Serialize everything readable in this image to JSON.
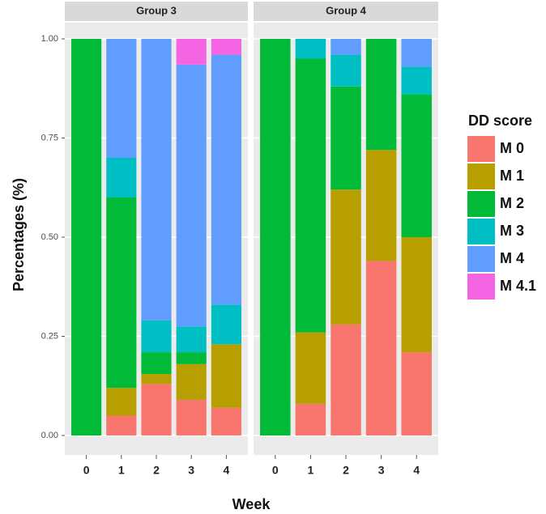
{
  "chart_data": {
    "type": "bar",
    "stacked": true,
    "x_label": "Week",
    "y_label": "Percentages (%)",
    "legend_title": "DD score",
    "categories": [
      "0",
      "1",
      "2",
      "3",
      "4"
    ],
    "ylim": [
      0,
      1
    ],
    "yticks": [
      {
        "value": 0,
        "label": "0.00"
      },
      {
        "value": 0.25,
        "label": "0.25"
      },
      {
        "value": 0.5,
        "label": "0.50"
      },
      {
        "value": 0.75,
        "label": "0.75"
      },
      {
        "value": 1,
        "label": "1.00"
      }
    ],
    "grid": true,
    "series": [
      {
        "name": "M 0",
        "color": "#F8766D"
      },
      {
        "name": "M 1",
        "color": "#B79F00"
      },
      {
        "name": "M 2",
        "color": "#00BA38"
      },
      {
        "name": "M 3",
        "color": "#00BFC4"
      },
      {
        "name": "M 4",
        "color": "#619CFF"
      },
      {
        "name": "M 4.1",
        "color": "#F564E3"
      }
    ],
    "facets": [
      {
        "title": "Group 3",
        "series": [
          {
            "values": [
              0,
              0.05,
              0.13,
              0.09,
              0.07
            ]
          },
          {
            "values": [
              0,
              0.07,
              0.025,
              0.09,
              0.16
            ]
          },
          {
            "values": [
              1,
              0.48,
              0.055,
              0.03,
              0
            ]
          },
          {
            "values": [
              0,
              0.1,
              0.08,
              0.065,
              0.1
            ]
          },
          {
            "values": [
              0,
              0.3,
              0.71,
              0.66,
              0.63
            ]
          },
          {
            "values": [
              0,
              0,
              0,
              0.065,
              0.04
            ]
          }
        ]
      },
      {
        "title": "Group 4",
        "series": [
          {
            "values": [
              0,
              0.08,
              0.28,
              0.44,
              0.21
            ]
          },
          {
            "values": [
              0,
              0.18,
              0.34,
              0.28,
              0.29
            ]
          },
          {
            "values": [
              1,
              0.69,
              0.26,
              0.28,
              0.36
            ]
          },
          {
            "values": [
              0,
              0.05,
              0.08,
              0,
              0.07
            ]
          },
          {
            "values": [
              0,
              0,
              0.04,
              0,
              0.07
            ]
          },
          {
            "values": [
              0,
              0,
              0,
              0,
              0
            ]
          }
        ]
      }
    ]
  }
}
